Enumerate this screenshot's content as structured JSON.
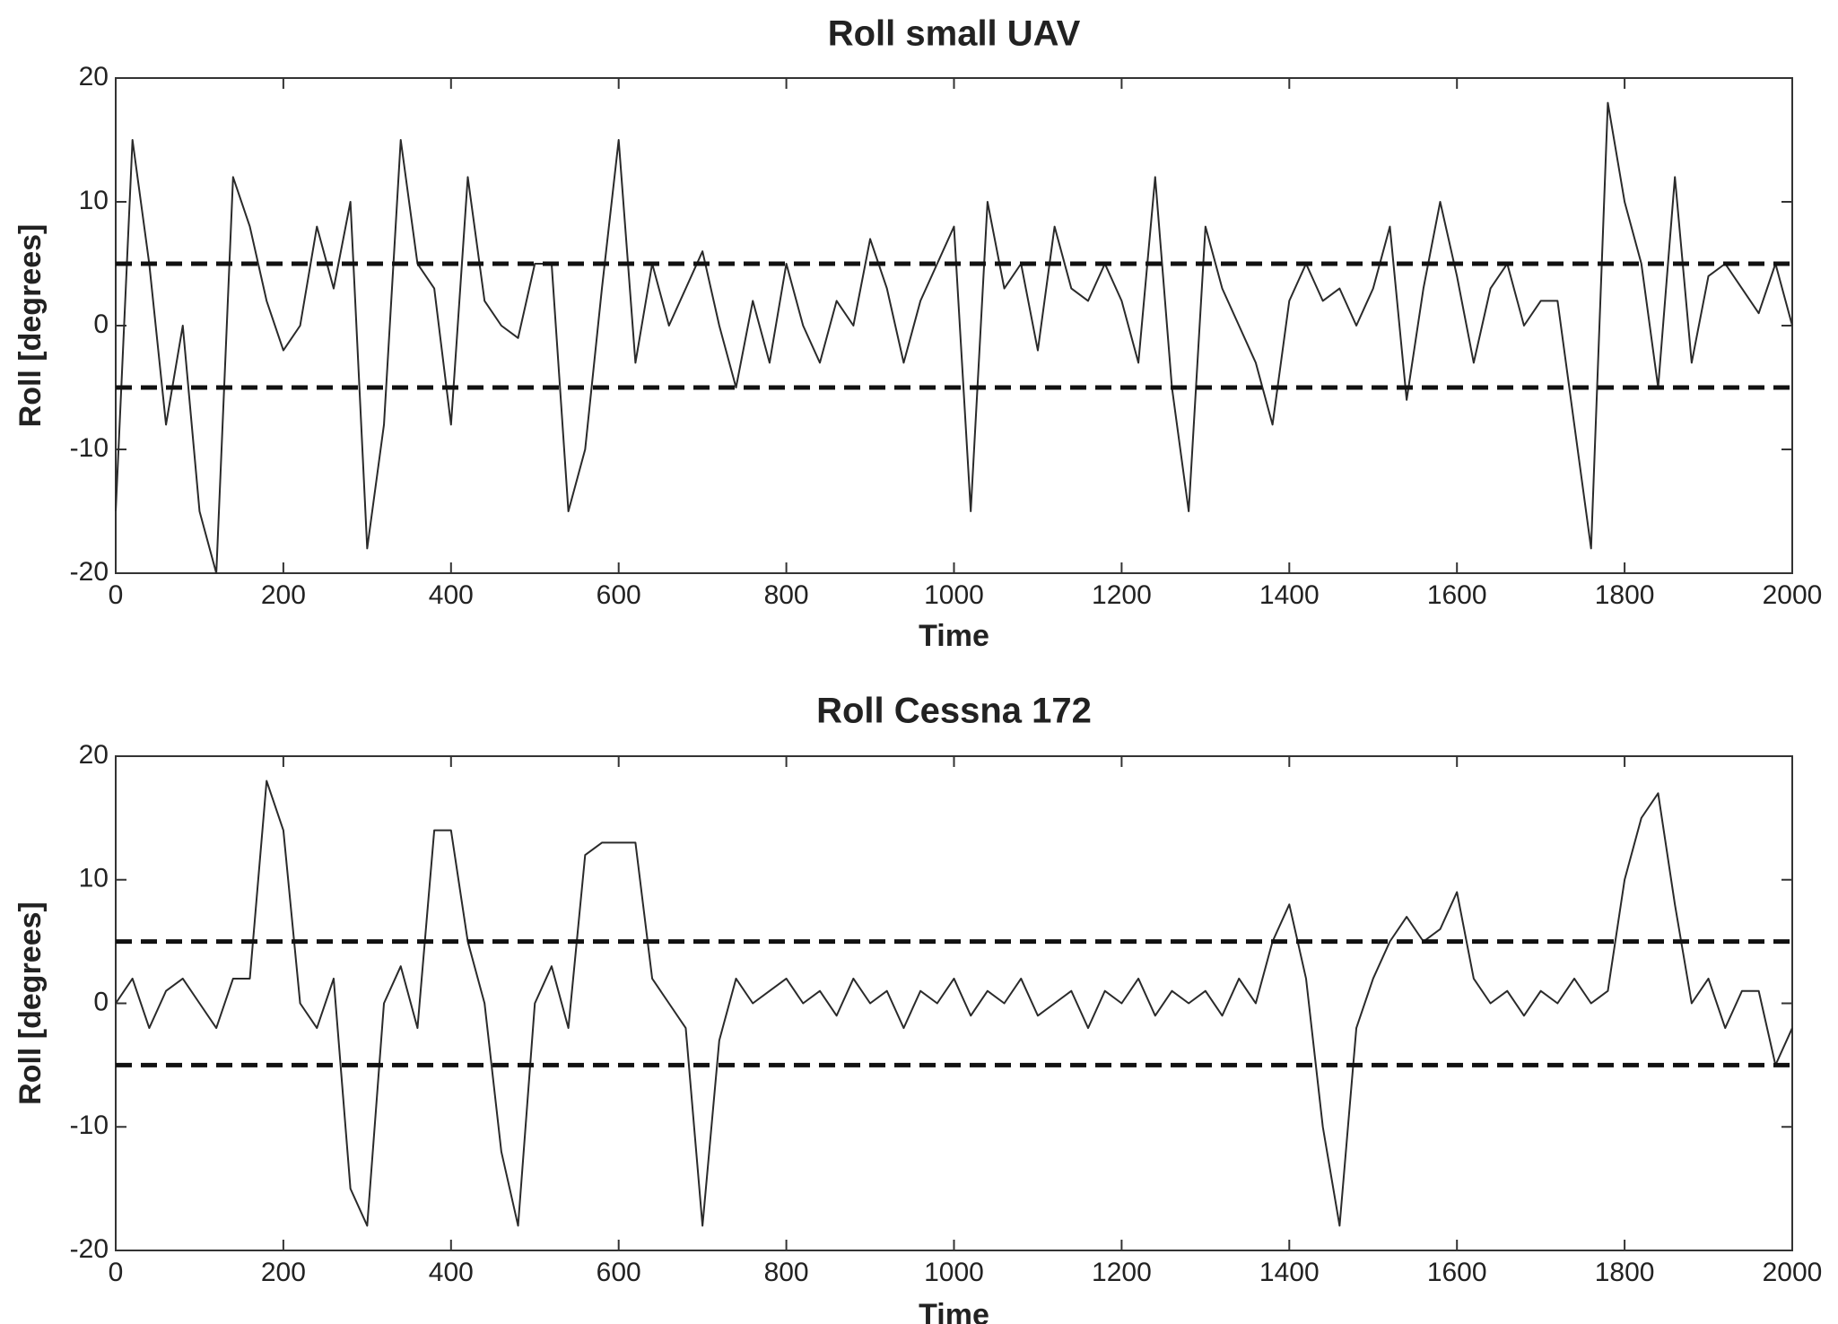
{
  "chart_data": [
    {
      "type": "line",
      "title": "Roll small UAV",
      "xlabel": "Time",
      "ylabel": "Roll [degrees]",
      "x": [
        0,
        20,
        40,
        60,
        80,
        100,
        120,
        140,
        160,
        180,
        200,
        220,
        240,
        260,
        280,
        300,
        320,
        340,
        360,
        380,
        400,
        420,
        440,
        460,
        480,
        500,
        520,
        540,
        560,
        580,
        600,
        620,
        640,
        660,
        680,
        700,
        720,
        740,
        760,
        780,
        800,
        820,
        840,
        860,
        880,
        900,
        920,
        940,
        960,
        980,
        1000,
        1020,
        1040,
        1060,
        1080,
        1100,
        1120,
        1140,
        1160,
        1180,
        1200,
        1220,
        1240,
        1260,
        1280,
        1300,
        1320,
        1340,
        1360,
        1380,
        1400,
        1420,
        1440,
        1460,
        1480,
        1500,
        1520,
        1540,
        1560,
        1580,
        1600,
        1620,
        1640,
        1660,
        1680,
        1700,
        1720,
        1740,
        1760,
        1780,
        1800,
        1820,
        1840,
        1860,
        1880,
        1900,
        1920,
        1940,
        1960,
        1980,
        2000
      ],
      "series": [
        {
          "color": "#2a2a2a",
          "values": [
            -15,
            15,
            5,
            -8,
            0,
            -15,
            -20,
            12,
            8,
            2,
            -2,
            0,
            8,
            3,
            10,
            -18,
            -8,
            15,
            5,
            3,
            -8,
            12,
            2,
            0,
            -1,
            5,
            5,
            -15,
            -10,
            3,
            15,
            -3,
            5,
            0,
            3,
            6,
            0,
            -5,
            2,
            -3,
            5,
            0,
            -3,
            2,
            0,
            7,
            3,
            -3,
            2,
            5,
            8,
            -15,
            10,
            3,
            5,
            -2,
            8,
            3,
            2,
            5,
            2,
            -3,
            12,
            -5,
            -15,
            8,
            3,
            0,
            -3,
            -8,
            2,
            5,
            2,
            3,
            0,
            3,
            8,
            -6,
            3,
            10,
            4,
            -3,
            3,
            5,
            0,
            2,
            2,
            -8,
            -18,
            18,
            10,
            5,
            -5,
            12,
            -3,
            4,
            5,
            3,
            1,
            5,
            0
          ]
        }
      ],
      "reference_lines": [
        5,
        -5
      ],
      "xlim": [
        0,
        2000
      ],
      "xticks": [
        0,
        200,
        400,
        600,
        800,
        1000,
        1200,
        1400,
        1600,
        1800,
        2000
      ],
      "ylim": [
        -20,
        20
      ],
      "yticks": [
        -20,
        -10,
        0,
        10,
        20
      ]
    },
    {
      "type": "line",
      "title": "Roll Cessna 172",
      "xlabel": "Time",
      "ylabel": "Roll [degrees]",
      "x": [
        0,
        20,
        40,
        60,
        80,
        100,
        120,
        140,
        160,
        180,
        200,
        220,
        240,
        260,
        280,
        300,
        320,
        340,
        360,
        380,
        400,
        420,
        440,
        460,
        480,
        500,
        520,
        540,
        560,
        580,
        600,
        620,
        640,
        660,
        680,
        700,
        720,
        740,
        760,
        780,
        800,
        820,
        840,
        860,
        880,
        900,
        920,
        940,
        960,
        980,
        1000,
        1020,
        1040,
        1060,
        1080,
        1100,
        1120,
        1140,
        1160,
        1180,
        1200,
        1220,
        1240,
        1260,
        1280,
        1300,
        1320,
        1340,
        1360,
        1380,
        1400,
        1420,
        1440,
        1460,
        1480,
        1500,
        1520,
        1540,
        1560,
        1580,
        1600,
        1620,
        1640,
        1660,
        1680,
        1700,
        1720,
        1740,
        1760,
        1780,
        1800,
        1820,
        1840,
        1860,
        1880,
        1900,
        1920,
        1940,
        1960,
        1980,
        2000
      ],
      "series": [
        {
          "color": "#2a2a2a",
          "values": [
            0,
            2,
            -2,
            1,
            2,
            0,
            -2,
            2,
            2,
            18,
            14,
            0,
            -2,
            2,
            -15,
            -18,
            0,
            3,
            -2,
            14,
            14,
            5,
            0,
            -12,
            -18,
            0,
            3,
            -2,
            12,
            13,
            13,
            13,
            2,
            0,
            -2,
            -18,
            -3,
            2,
            0,
            1,
            2,
            0,
            1,
            -1,
            2,
            0,
            1,
            -2,
            1,
            0,
            2,
            -1,
            1,
            0,
            2,
            -1,
            0,
            1,
            -2,
            1,
            0,
            2,
            -1,
            1,
            0,
            1,
            -1,
            2,
            0,
            5,
            8,
            2,
            -10,
            -18,
            -2,
            2,
            5,
            7,
            5,
            6,
            9,
            2,
            0,
            1,
            -1,
            1,
            0,
            2,
            0,
            1,
            10,
            15,
            17,
            8,
            0,
            2,
            -2,
            1,
            1,
            -5,
            -2
          ]
        }
      ],
      "reference_lines": [
        5,
        -5
      ],
      "xlim": [
        0,
        2000
      ],
      "xticks": [
        0,
        200,
        400,
        600,
        800,
        1000,
        1200,
        1400,
        1600,
        1800,
        2000
      ],
      "ylim": [
        -20,
        20
      ],
      "yticks": [
        -20,
        -10,
        0,
        10,
        20
      ]
    }
  ]
}
